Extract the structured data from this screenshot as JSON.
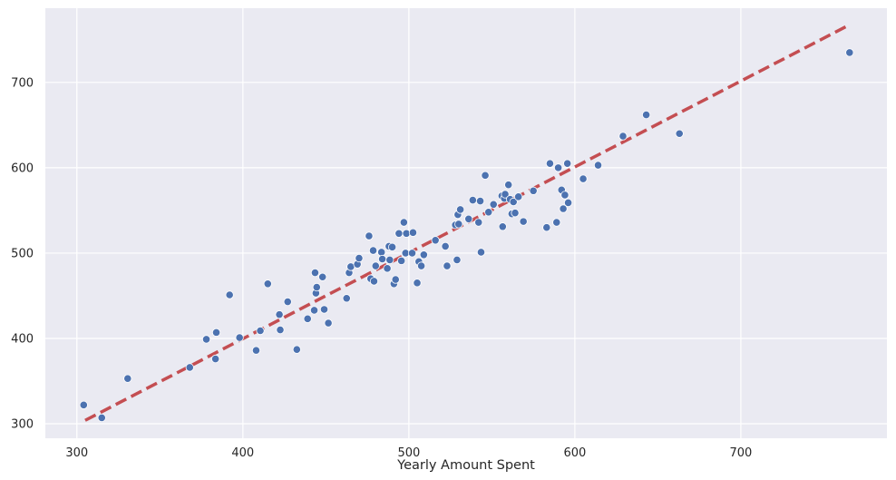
{
  "chart_data": {
    "type": "scatter",
    "xlabel": "Yearly Amount Spent",
    "ylabel": "",
    "xlim": [
      281,
      788
    ],
    "ylim": [
      283,
      787
    ],
    "x_ticks": [
      300,
      400,
      500,
      600,
      700
    ],
    "y_ticks": [
      300,
      400,
      500,
      600,
      700
    ],
    "grid": true,
    "colors": {
      "background": "#eaeaf2",
      "grid": "#ffffff",
      "points": "#4c72b0",
      "fit_line": "#c44e52"
    },
    "fit_line": {
      "style": "dashed",
      "points": [
        [
          305,
          304
        ],
        [
          765,
          767
        ]
      ]
    },
    "points": [
      [
        304.1,
        322
      ],
      [
        315,
        307
      ],
      [
        330.6,
        353
      ],
      [
        368,
        366
      ],
      [
        378,
        399
      ],
      [
        383.5,
        376
      ],
      [
        384,
        407
      ],
      [
        392,
        451
      ],
      [
        398,
        401
      ],
      [
        408,
        386
      ],
      [
        410.5,
        409
      ],
      [
        415,
        464
      ],
      [
        422,
        428
      ],
      [
        422.5,
        410
      ],
      [
        427,
        443
      ],
      [
        432.5,
        387
      ],
      [
        439,
        423
      ],
      [
        443,
        433
      ],
      [
        443.5,
        477
      ],
      [
        444,
        453
      ],
      [
        444.5,
        460
      ],
      [
        448,
        472
      ],
      [
        449,
        434
      ],
      [
        451.5,
        418
      ],
      [
        462.5,
        447
      ],
      [
        464,
        477
      ],
      [
        465,
        484
      ],
      [
        469,
        487
      ],
      [
        470,
        494
      ],
      [
        476,
        520
      ],
      [
        477,
        470
      ],
      [
        478.5,
        503
      ],
      [
        479,
        467
      ],
      [
        480,
        485
      ],
      [
        483.5,
        501
      ],
      [
        484,
        493
      ],
      [
        487,
        482
      ],
      [
        488,
        508
      ],
      [
        488.5,
        492
      ],
      [
        490,
        507
      ],
      [
        491,
        464
      ],
      [
        492,
        469
      ],
      [
        494,
        523
      ],
      [
        495.5,
        491
      ],
      [
        497,
        536
      ],
      [
        498,
        500
      ],
      [
        498.5,
        523
      ],
      [
        502,
        500
      ],
      [
        502.5,
        524
      ],
      [
        505,
        465
      ],
      [
        506,
        490
      ],
      [
        507.5,
        485
      ],
      [
        509,
        498
      ],
      [
        516,
        515
      ],
      [
        522,
        508
      ],
      [
        523,
        485
      ],
      [
        528,
        533
      ],
      [
        529,
        492
      ],
      [
        529.5,
        545
      ],
      [
        530,
        534
      ],
      [
        531,
        551
      ],
      [
        536,
        540
      ],
      [
        538.5,
        562
      ],
      [
        542,
        536
      ],
      [
        543,
        561
      ],
      [
        543.5,
        501
      ],
      [
        546,
        591
      ],
      [
        548,
        548
      ],
      [
        551,
        557
      ],
      [
        556,
        567
      ],
      [
        556.5,
        531
      ],
      [
        557.5,
        564
      ],
      [
        558,
        569
      ],
      [
        560,
        580
      ],
      [
        561,
        563
      ],
      [
        562,
        546
      ],
      [
        563,
        560
      ],
      [
        564,
        547
      ],
      [
        566,
        566
      ],
      [
        569,
        537
      ],
      [
        575,
        573
      ],
      [
        583,
        530
      ],
      [
        585,
        605
      ],
      [
        589,
        536
      ],
      [
        590,
        600
      ],
      [
        592,
        574
      ],
      [
        593,
        552
      ],
      [
        594,
        568
      ],
      [
        595.5,
        605
      ],
      [
        596,
        559
      ],
      [
        605,
        587
      ],
      [
        614,
        603
      ],
      [
        629,
        637
      ],
      [
        643,
        662
      ],
      [
        663,
        640
      ],
      [
        765.5,
        735
      ]
    ]
  }
}
